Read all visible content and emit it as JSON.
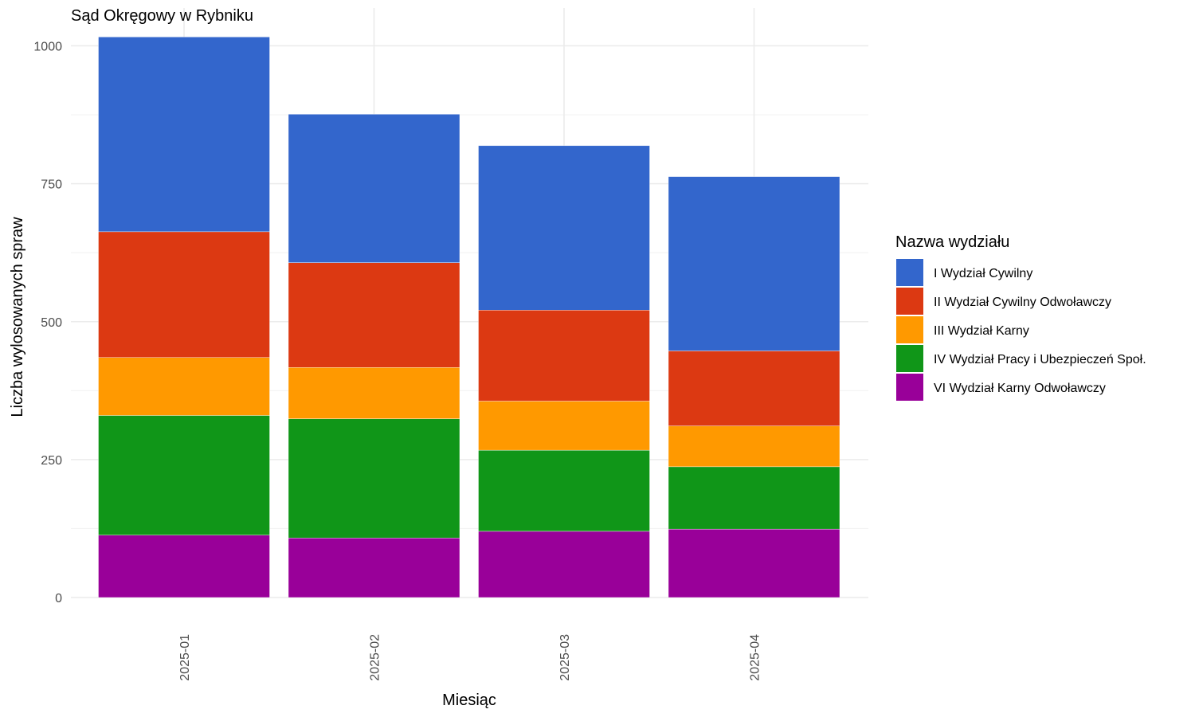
{
  "chart_data": {
    "type": "bar",
    "stacked": true,
    "title": "Sąd Okręgowy w Rybniku",
    "xlabel": "Miesiąc",
    "ylabel": "Liczba wylosowanych spraw",
    "categories": [
      "2025-01",
      "2025-02",
      "2025-03",
      "2025-04"
    ],
    "ylim": [
      0,
      1040
    ],
    "yticks": [
      0,
      250,
      500,
      750,
      1000
    ],
    "grid": true,
    "legend": {
      "title": "Nazwa wydziału",
      "placement": "right"
    },
    "series": [
      {
        "name": "VI Wydział Karny Odwoławczy",
        "color": "#990099",
        "values": [
          113,
          108,
          120,
          124
        ]
      },
      {
        "name": "IV Wydział Pracy i Ubezpieczeń Społ.",
        "color": "#109618",
        "values": [
          217,
          216,
          147,
          113
        ]
      },
      {
        "name": "III Wydział Karny",
        "color": "#FF9900",
        "values": [
          105,
          93,
          89,
          74
        ]
      },
      {
        "name": "II Wydział Cywilny Odwoławczy",
        "color": "#DC3912",
        "values": [
          228,
          190,
          165,
          136
        ]
      },
      {
        "name": "I Wydział Cywilny",
        "color": "#3366CC",
        "values": [
          353,
          269,
          298,
          316
        ]
      }
    ]
  }
}
